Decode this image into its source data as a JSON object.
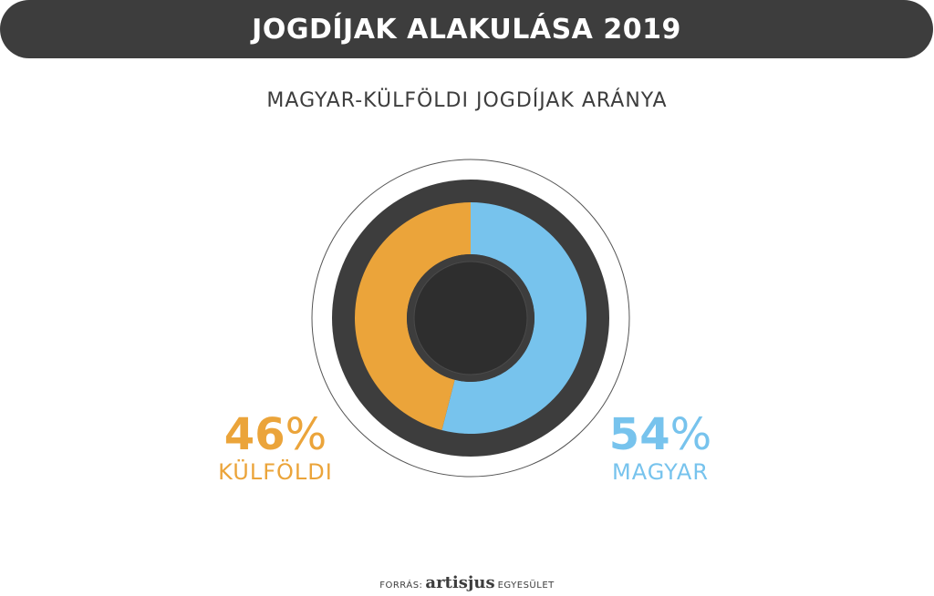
{
  "header": {
    "title": "JOGDÍJAK ALAKULÁSA 2019"
  },
  "chart_data": {
    "type": "pie",
    "title": "MAGYAR-KÜLFÖLDI JOGDÍJAK ARÁNYA",
    "slices": [
      {
        "name": "MAGYAR",
        "value": 54,
        "value_label": "54",
        "unit": "%",
        "color": "#77c3ed"
      },
      {
        "name": "KÜLFÖLDI",
        "value": 46,
        "value_label": "46",
        "unit": "%",
        "color": "#eba43a"
      }
    ]
  },
  "colors": {
    "dark": "#3d3d3d",
    "core": "#2e2e2e",
    "outline": "#555555"
  },
  "footer": {
    "prefix": "FORRÁS:",
    "logo": "artisjus",
    "suffix": "EGYESÜLET"
  }
}
